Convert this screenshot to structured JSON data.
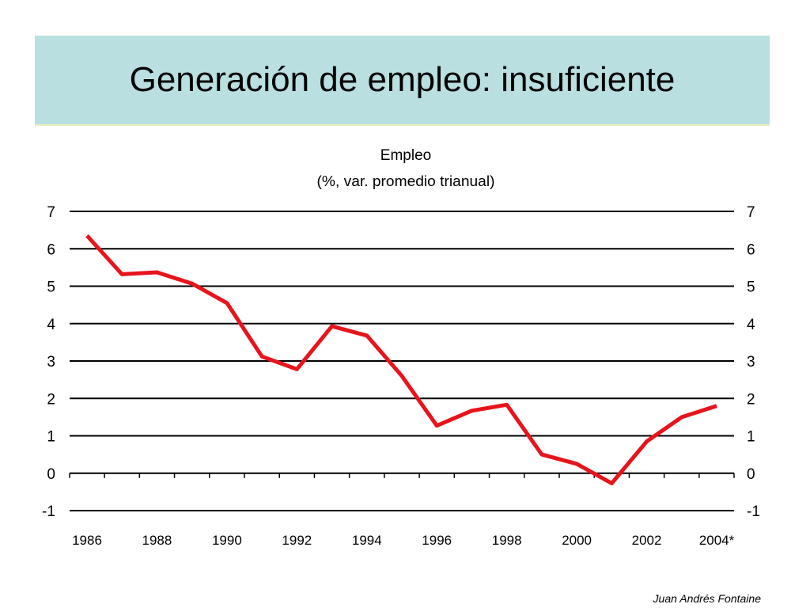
{
  "slide": {
    "title": "Generación de empleo: insuficiente",
    "footer": "Juan Andrés Fontaine"
  },
  "colors": {
    "header_band": "#b9dfe0",
    "line": "#e8141b"
  },
  "chart_data": {
    "type": "line",
    "title": "Empleo",
    "subtitle": "(%, var. promedio trianual)",
    "xlabel": "",
    "ylabel": "",
    "x": [
      "1986",
      "1987",
      "1988",
      "1989",
      "1990",
      "1991",
      "1992",
      "1993",
      "1994",
      "1995",
      "1996",
      "1997",
      "1998",
      "1999",
      "2000",
      "2001",
      "2002",
      "2003",
      "2004*"
    ],
    "x_tick_labels": [
      "1986",
      "1988",
      "1990",
      "1992",
      "1994",
      "1996",
      "1998",
      "2000",
      "2002",
      "2004*"
    ],
    "series": [
      {
        "values": [
          6.35,
          5.32,
          5.37,
          5.07,
          4.55,
          3.12,
          2.78,
          3.93,
          3.68,
          2.6,
          1.27,
          1.67,
          1.83,
          0.5,
          0.25,
          -0.27,
          0.85,
          1.5,
          1.8
        ]
      }
    ],
    "ylim": [
      -1,
      7
    ],
    "y_ticks": [
      -1,
      0,
      1,
      2,
      3,
      4,
      5,
      6,
      7
    ],
    "secondary_y_axis": true,
    "grid": true,
    "legend": "none"
  }
}
